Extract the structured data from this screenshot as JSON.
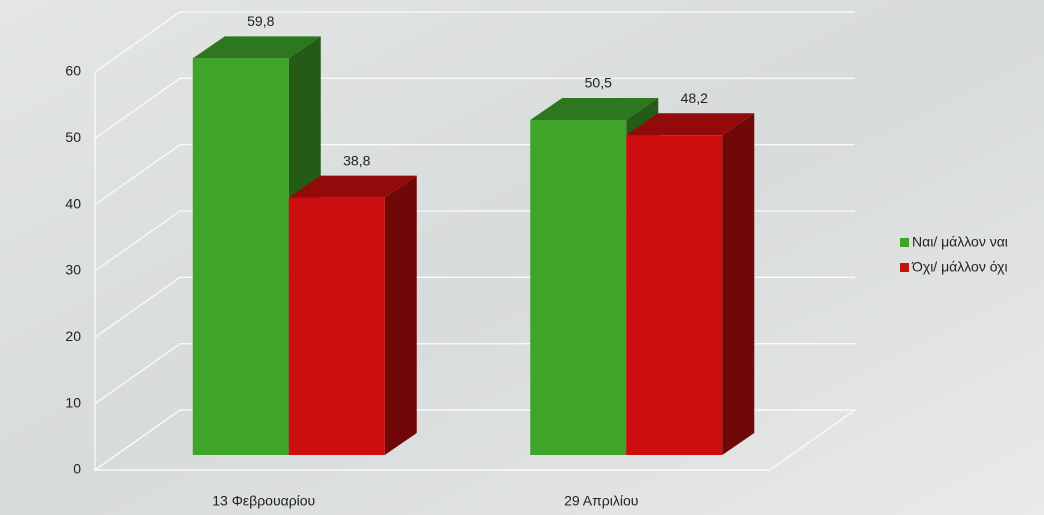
{
  "chart_data": {
    "type": "bar3d",
    "categories": [
      "13 Φεβρουαρίου",
      "29 Απριλίου"
    ],
    "series": [
      {
        "name": "Ναι/ μάλλον ναι",
        "color": "#3fa52a",
        "values": [
          59.8,
          50.5
        ],
        "value_labels": [
          "59,8",
          "50,5"
        ]
      },
      {
        "name": "Όχι/ μάλλον όχι",
        "color": "#cc0e0e",
        "values": [
          38.8,
          48.2
        ],
        "value_labels": [
          "38,8",
          "48,2"
        ]
      }
    ],
    "ylim": [
      0,
      60
    ],
    "yticks": [
      0,
      10,
      20,
      30,
      40,
      50,
      60
    ],
    "grid": true,
    "legend": "right"
  }
}
